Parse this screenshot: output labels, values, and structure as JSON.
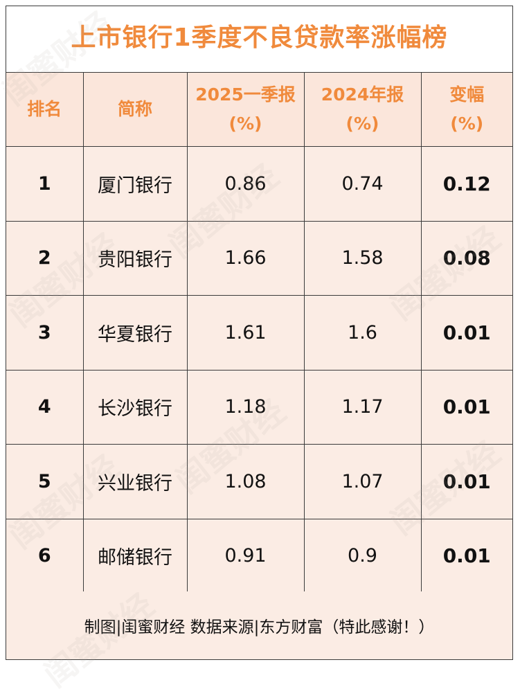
{
  "title": "上市银行1季度不良贷款率涨幅榜",
  "columns": {
    "rank": "排名",
    "name": "简称",
    "q1_2025_line1": "2025一季报",
    "q1_2025_line2": "(%)",
    "y2024_line1": "2024年报",
    "y2024_line2": "(%)",
    "change_line1": "变幅",
    "change_line2": "(%)"
  },
  "rows": [
    {
      "rank": "1",
      "name": "厦门银行",
      "q1_2025": "0.86",
      "y2024": "0.74",
      "change": "0.12"
    },
    {
      "rank": "2",
      "name": "贵阳银行",
      "q1_2025": "1.66",
      "y2024": "1.58",
      "change": "0.08"
    },
    {
      "rank": "3",
      "name": "华夏银行",
      "q1_2025": "1.61",
      "y2024": "1.6",
      "change": "0.01"
    },
    {
      "rank": "4",
      "name": "长沙银行",
      "q1_2025": "1.18",
      "y2024": "1.17",
      "change": "0.01"
    },
    {
      "rank": "5",
      "name": "兴业银行",
      "q1_2025": "1.08",
      "y2024": "1.07",
      "change": "0.01"
    },
    {
      "rank": "6",
      "name": "邮储银行",
      "q1_2025": "0.91",
      "y2024": "0.9",
      "change": "0.01"
    }
  ],
  "footer": "制图|闺蜜财经 数据来源|东方财富（特此感谢！）",
  "watermark": "闺蜜财经",
  "colors": {
    "accent": "#f08a3c",
    "header_bg": "#fbe6db",
    "row_bg": "#fbece4",
    "border": "#3a3a3a"
  }
}
